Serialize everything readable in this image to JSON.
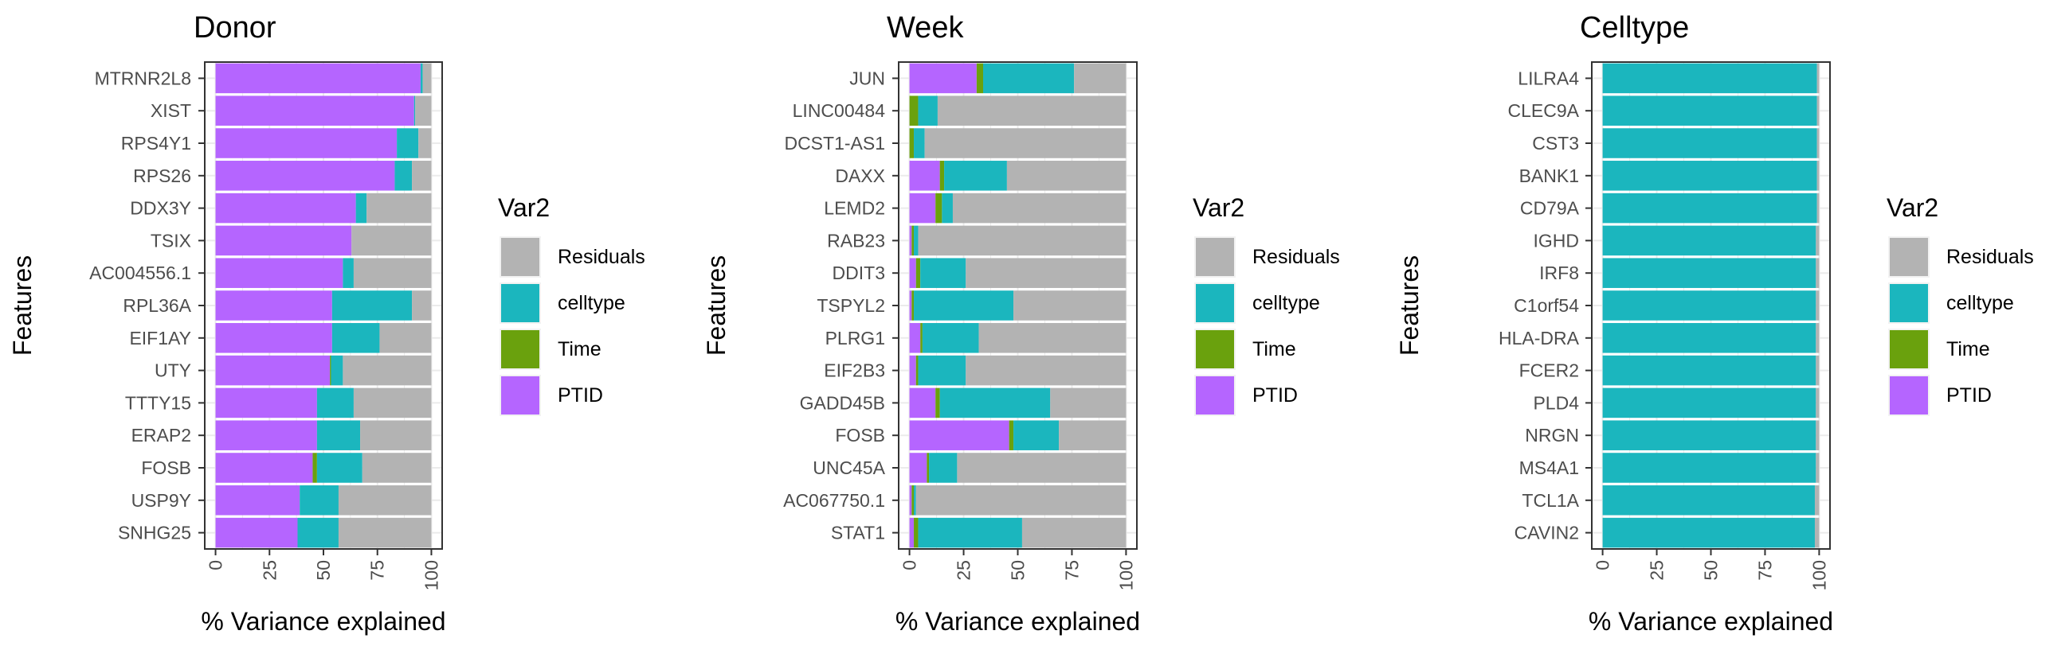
{
  "colors": {
    "Residuals": "#B3B3B3",
    "celltype": "#1BB6BE",
    "Time": "#6AA10D",
    "PTID": "#B565FF",
    "panel_border": "#333333",
    "grid": "#EBEBEB",
    "text": "#222222"
  },
  "chart_data": [
    {
      "type": "bar",
      "orientation": "horizontal",
      "stacked": true,
      "title": "Donor",
      "xlabel": "% Variance explained",
      "ylabel": "Features",
      "xlim": [
        0,
        100
      ],
      "xticks": [
        "0",
        "25",
        "50",
        "75",
        "100"
      ],
      "grid": true,
      "legend": {
        "title": "Var2",
        "position": "right",
        "entries": [
          "Residuals",
          "celltype",
          "Time",
          "PTID"
        ]
      },
      "categories": [
        "MTRNR2L8",
        "XIST",
        "RPS4Y1",
        "RPS26",
        "DDX3Y",
        "TSIX",
        "AC004556.1",
        "RPL36A",
        "EIF1AY",
        "UTY",
        "TTTY15",
        "ERAP2",
        "FOSB",
        "USP9Y",
        "SNHG25"
      ],
      "series": [
        {
          "name": "PTID",
          "values": [
            95,
            92,
            84,
            83,
            65,
            63,
            59,
            54,
            54,
            53,
            47,
            47,
            45,
            39,
            38
          ]
        },
        {
          "name": "Time",
          "values": [
            0,
            0,
            0,
            0,
            0,
            0,
            0,
            0,
            0,
            0.5,
            0,
            0,
            2,
            0,
            0
          ]
        },
        {
          "name": "celltype",
          "values": [
            1,
            0.5,
            10,
            8,
            5,
            0,
            5,
            37,
            22,
            5.5,
            17,
            20,
            21,
            18,
            19
          ]
        },
        {
          "name": "Residuals",
          "values": [
            4,
            7.5,
            6,
            9,
            30,
            37,
            36,
            9,
            24,
            41,
            36,
            33,
            32,
            43,
            43
          ]
        }
      ]
    },
    {
      "type": "bar",
      "orientation": "horizontal",
      "stacked": true,
      "title": "Week",
      "xlabel": "% Variance explained",
      "ylabel": "Features",
      "xlim": [
        0,
        100
      ],
      "xticks": [
        "0",
        "25",
        "50",
        "75",
        "100"
      ],
      "grid": true,
      "legend": {
        "title": "Var2",
        "position": "right",
        "entries": [
          "Residuals",
          "celltype",
          "Time",
          "PTID"
        ]
      },
      "categories": [
        "JUN",
        "LINC00484",
        "DCST1-AS1",
        "DAXX",
        "LEMD2",
        "RAB23",
        "DDIT3",
        "TSPYL2",
        "PLRG1",
        "EIF2B3",
        "GADD45B",
        "FOSB",
        "UNC45A",
        "AC067750.1",
        "STAT1"
      ],
      "series": [
        {
          "name": "PTID",
          "values": [
            31,
            0,
            0,
            14,
            12,
            1,
            3,
            1,
            5,
            3,
            12,
            46,
            8,
            1,
            2
          ]
        },
        {
          "name": "Time",
          "values": [
            3,
            4,
            2,
            2,
            3,
            1,
            2,
            1,
            1,
            1,
            2,
            2,
            1,
            1,
            2
          ]
        },
        {
          "name": "celltype",
          "values": [
            42,
            9,
            5,
            29,
            5,
            2,
            21,
            46,
            26,
            22,
            51,
            21,
            13,
            1,
            48
          ]
        },
        {
          "name": "Residuals",
          "values": [
            24,
            87,
            93,
            55,
            80,
            96,
            74,
            52,
            68,
            74,
            35,
            31,
            78,
            97,
            48
          ]
        }
      ]
    },
    {
      "type": "bar",
      "orientation": "horizontal",
      "stacked": true,
      "title": "Celltype",
      "xlabel": "% Variance explained",
      "ylabel": "Features",
      "xlim": [
        0,
        100
      ],
      "xticks": [
        "0",
        "25",
        "50",
        "75",
        "100"
      ],
      "grid": true,
      "legend": {
        "title": "Var2",
        "position": "right",
        "entries": [
          "Residuals",
          "celltype",
          "Time",
          "PTID"
        ]
      },
      "categories": [
        "LILRA4",
        "CLEC9A",
        "CST3",
        "BANK1",
        "CD79A",
        "IGHD",
        "IRF8",
        "C1orf54",
        "HLA-DRA",
        "FCER2",
        "PLD4",
        "NRGN",
        "MS4A1",
        "TCL1A",
        "CAVIN2"
      ],
      "series": [
        {
          "name": "PTID",
          "values": [
            0,
            0,
            0,
            0,
            0,
            0,
            0,
            0,
            0,
            0,
            0,
            0,
            0,
            0,
            0
          ]
        },
        {
          "name": "Time",
          "values": [
            0,
            0,
            0,
            0,
            0,
            0,
            0,
            0,
            0,
            0,
            0,
            0,
            0,
            0,
            0
          ]
        },
        {
          "name": "celltype",
          "values": [
            99,
            99,
            99,
            99,
            99,
            98.5,
            98.5,
            98.5,
            98.5,
            98.5,
            98.5,
            98.5,
            98.5,
            98,
            98
          ]
        },
        {
          "name": "Residuals",
          "values": [
            1,
            1,
            1,
            1,
            1,
            1.5,
            1.5,
            1.5,
            1.5,
            1.5,
            1.5,
            1.5,
            1.5,
            2,
            2
          ]
        }
      ]
    }
  ]
}
